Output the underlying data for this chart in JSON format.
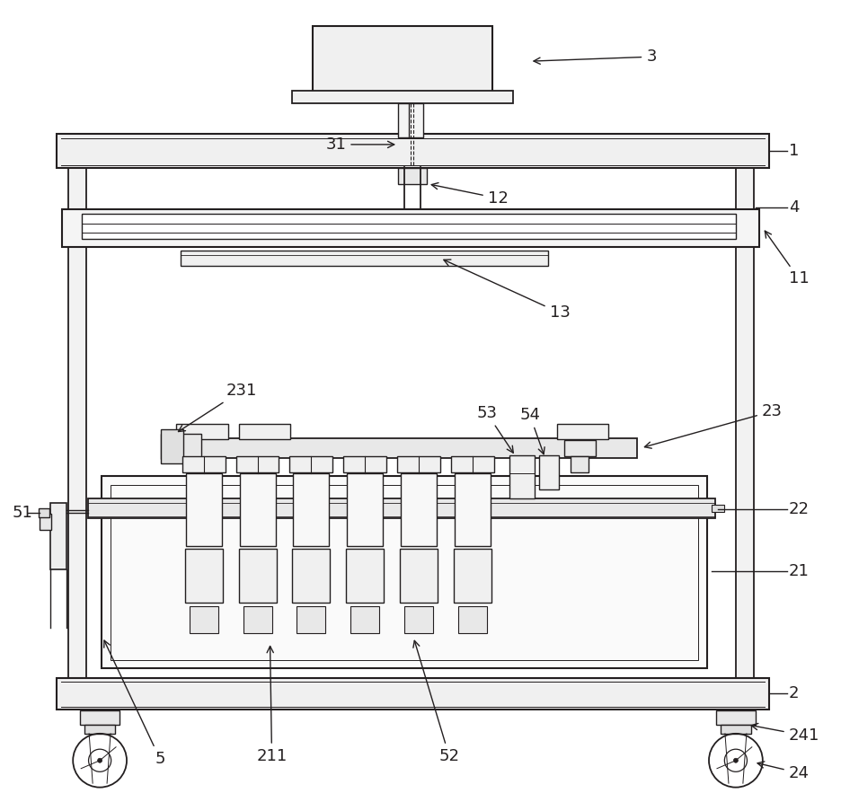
{
  "bg_color": "#ffffff",
  "line_color": "#231f20",
  "fig_width": 9.36,
  "fig_height": 8.93
}
